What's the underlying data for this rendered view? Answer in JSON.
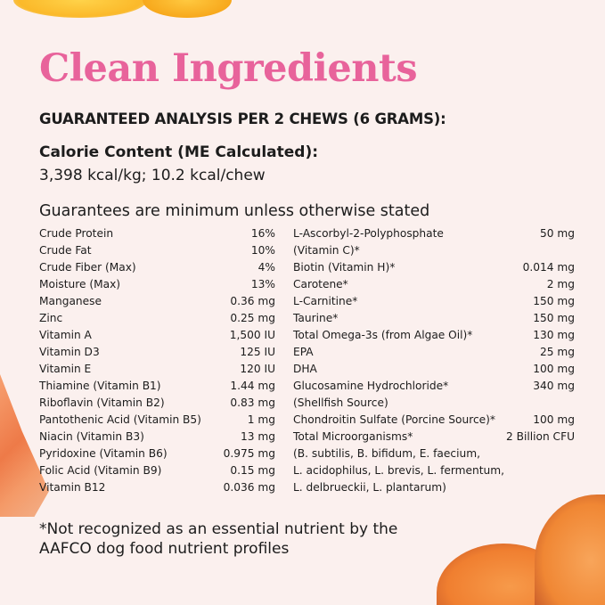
{
  "title": "Clean Ingredients",
  "heading": "GUARANTEED ANALYSIS PER 2 CHEWS (6 GRAMS):",
  "calorie": {
    "label": "Calorie Content (ME Calculated):",
    "value": "3,398 kcal/kg; 10.2 kcal/chew"
  },
  "guarantees_note": "Guarantees are minimum unless otherwise stated",
  "left_column": [
    {
      "name": "Crude Protein",
      "value": "16%"
    },
    {
      "name": "Crude Fat",
      "value": "10%"
    },
    {
      "name": "Crude Fiber (Max)",
      "value": "4%"
    },
    {
      "name": "Moisture (Max)",
      "value": "13%"
    },
    {
      "name": "Manganese",
      "value": "0.36 mg"
    },
    {
      "name": "Zinc",
      "value": "0.25 mg"
    },
    {
      "name": "Vitamin A",
      "value": "1,500 IU"
    },
    {
      "name": "Vitamin D3",
      "value": "125 IU"
    },
    {
      "name": "Vitamin E",
      "value": "120 IU"
    },
    {
      "name": "Thiamine (Vitamin B1)",
      "value": "1.44 mg"
    },
    {
      "name": "Riboflavin (Vitamin B2)",
      "value": "0.83 mg"
    },
    {
      "name": "Pantothenic Acid (Vitamin B5)",
      "value": "1 mg"
    },
    {
      "name": "Niacin (Vitamin B3)",
      "value": "13 mg"
    },
    {
      "name": "Pyridoxine (Vitamin B6)",
      "value": "0.975 mg"
    },
    {
      "name": "Folic Acid (Vitamin B9)",
      "value": "0.15 mg"
    },
    {
      "name": "Vitamin B12",
      "value": "0.036 mg"
    }
  ],
  "right_column": [
    {
      "name": "L-Ascorbyl-2-Polyphosphate",
      "value": "50 mg",
      "continued": [
        "(Vitamin C)*"
      ]
    },
    {
      "name": "Biotin (Vitamin H)*",
      "value": "0.014 mg"
    },
    {
      "name": "Carotene*",
      "value": "2 mg"
    },
    {
      "name": "L-Carnitine*",
      "value": "150 mg"
    },
    {
      "name": "Taurine*",
      "value": "150 mg"
    },
    {
      "name": "Total Omega-3s (from Algae Oil)*",
      "value": "130 mg"
    },
    {
      "name": "EPA",
      "value": "25 mg"
    },
    {
      "name": "DHA",
      "value": "100 mg"
    },
    {
      "name": "Glucosamine Hydrochloride*",
      "value": "340 mg",
      "continued": [
        "(Shellfish Source)"
      ]
    },
    {
      "name": "Chondroitin Sulfate (Porcine Source)*",
      "value": "100 mg"
    },
    {
      "name": "Total Microorganisms*",
      "value": "2 Billion CFU",
      "continued": [
        "(B. subtilis, B. bifidum, E. faecium,",
        "L. acidophilus,  L. brevis, L. fermentum,",
        "L. delbrueckii, L. plantarum)"
      ]
    }
  ],
  "footnote": [
    "*Not recognized as an essential nutrient by the",
    "AAFCO dog food nutrient profiles"
  ],
  "colors": {
    "title": "#e8639b",
    "background": "#fbf0ee",
    "text": "#1c1c1c"
  }
}
